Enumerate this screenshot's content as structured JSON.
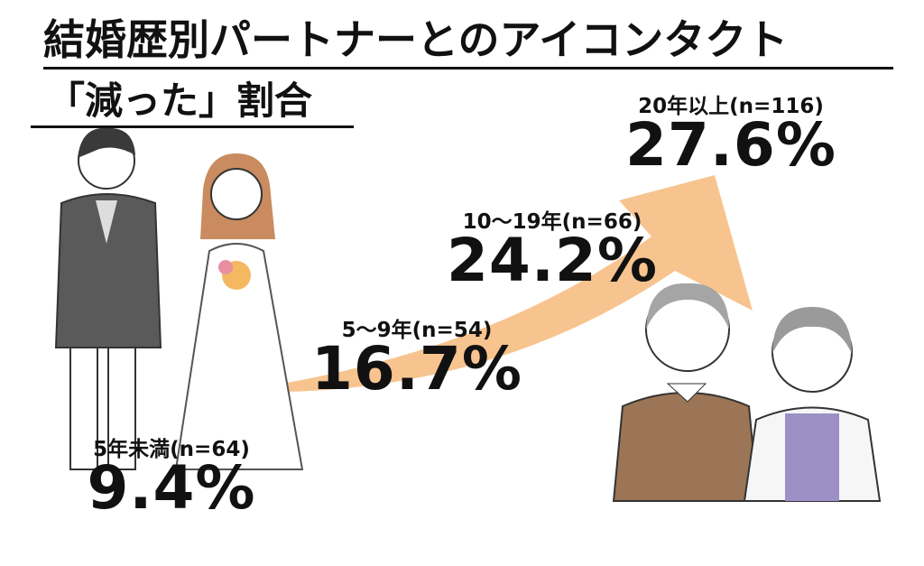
{
  "title": {
    "line1": "結婚歴別パートナーとのアイコンタクト",
    "line2": "「減った」割合"
  },
  "items": [
    {
      "label": "5年未満(n=64)",
      "value": "9.4%"
    },
    {
      "label": "5～9年(n=54)",
      "value": "16.7%"
    },
    {
      "label": "10～19年(n=66)",
      "value": "24.2%"
    },
    {
      "label": "20年以上(n=116)",
      "value": "27.6%"
    }
  ]
}
